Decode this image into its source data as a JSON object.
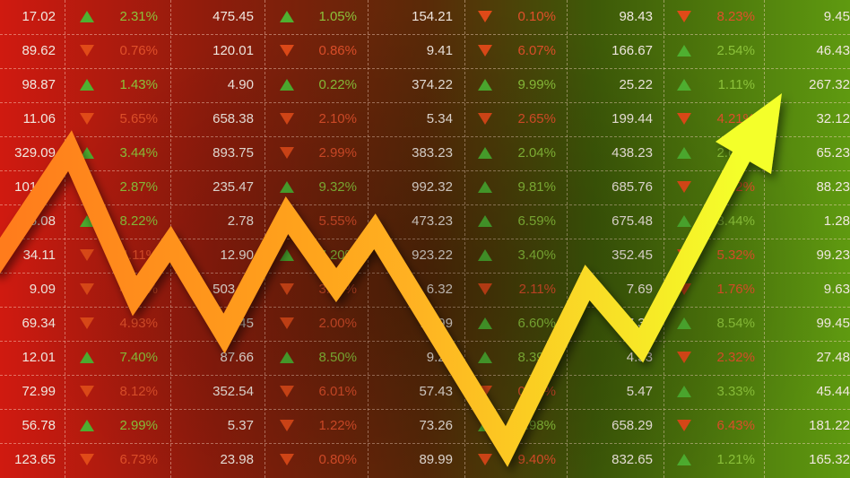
{
  "colors": {
    "up": "#4fb030",
    "down": "#e04a18",
    "arrow_start": "#ff8a1e",
    "arrow_end": "#f6ff2a"
  },
  "rows": [
    [
      [
        "17.02",
        "up",
        "2.31%"
      ],
      [
        "475.45",
        "up",
        "1.05%"
      ],
      [
        "154.21",
        "down",
        "0.10%"
      ],
      [
        "98.43",
        "down",
        "8.23%"
      ],
      [
        "9.45"
      ]
    ],
    [
      [
        "89.62",
        "down",
        "0.76%"
      ],
      [
        "120.01",
        "down",
        "0.86%"
      ],
      [
        "9.41",
        "down",
        "6.07%"
      ],
      [
        "166.67",
        "up",
        "2.54%"
      ],
      [
        "46.43"
      ]
    ],
    [
      [
        "98.87",
        "up",
        "1.43%"
      ],
      [
        "4.90",
        "up",
        "0.22%"
      ],
      [
        "374.22",
        "up",
        "9.99%"
      ],
      [
        "25.22",
        "up",
        "1.11%"
      ],
      [
        "267.32"
      ]
    ],
    [
      [
        "11.06",
        "down",
        "5.65%"
      ],
      [
        "658.38",
        "down",
        "2.10%"
      ],
      [
        "5.34",
        "down",
        "2.65%"
      ],
      [
        "199.44",
        "down",
        "4.21%"
      ],
      [
        "32.12"
      ]
    ],
    [
      [
        "329.09",
        "up",
        "3.44%"
      ],
      [
        "893.75",
        "down",
        "2.99%"
      ],
      [
        "383.23",
        "up",
        "2.04%"
      ],
      [
        "438.23",
        "up",
        "2.61%"
      ],
      [
        "65.23"
      ]
    ],
    [
      [
        "101.56",
        "up",
        "2.87%"
      ],
      [
        "235.47",
        "up",
        "9.32%"
      ],
      [
        "992.32",
        "up",
        "9.81%"
      ],
      [
        "685.76",
        "down",
        "5.12%"
      ],
      [
        "88.23"
      ]
    ],
    [
      [
        "5.08",
        "up",
        "8.22%"
      ],
      [
        "2.78",
        "down",
        "5.55%"
      ],
      [
        "473.23",
        "up",
        "6.59%"
      ],
      [
        "675.48",
        "up",
        "3.44%"
      ],
      [
        "1.28"
      ]
    ],
    [
      [
        "34.11",
        "down",
        "4.11%"
      ],
      [
        "12.90",
        "up",
        "7.20%"
      ],
      [
        "923.22",
        "up",
        "3.40%"
      ],
      [
        "352.45",
        "down",
        "5.32%"
      ],
      [
        "99.23"
      ]
    ],
    [
      [
        "9.09",
        "down",
        "4.47%"
      ],
      [
        "503.46",
        "down",
        "3.17%"
      ],
      [
        "6.32",
        "down",
        "2.11%"
      ],
      [
        "7.69",
        "down",
        "1.76%"
      ],
      [
        "9.63"
      ]
    ],
    [
      [
        "69.34",
        "down",
        "4.93%"
      ],
      [
        "521.45",
        "down",
        "2.00%"
      ],
      [
        "11.99",
        "up",
        "6.60%"
      ],
      [
        "457.38",
        "up",
        "8.54%"
      ],
      [
        "99.45"
      ]
    ],
    [
      [
        "12.01",
        "up",
        "7.40%"
      ],
      [
        "87.66",
        "up",
        "8.50%"
      ],
      [
        "9.23",
        "up",
        "8.39%"
      ],
      [
        "4.33",
        "down",
        "2.32%"
      ],
      [
        "27.48"
      ]
    ],
    [
      [
        "72.99",
        "down",
        "8.12%"
      ],
      [
        "352.54",
        "down",
        "6.01%"
      ],
      [
        "57.43",
        "down",
        "0.71%"
      ],
      [
        "5.47",
        "up",
        "3.33%"
      ],
      [
        "45.44"
      ]
    ],
    [
      [
        "56.78",
        "up",
        "2.99%"
      ],
      [
        "5.37",
        "down",
        "1.22%"
      ],
      [
        "73.26",
        "up",
        "4.98%"
      ],
      [
        "658.29",
        "down",
        "6.43%"
      ],
      [
        "181.22"
      ]
    ],
    [
      [
        "123.65",
        "down",
        "6.73%"
      ],
      [
        "23.98",
        "down",
        "0.80%"
      ],
      [
        "89.99",
        "down",
        "9.40%"
      ],
      [
        "832.65",
        "up",
        "1.21%"
      ],
      [
        "165.32"
      ]
    ]
  ]
}
